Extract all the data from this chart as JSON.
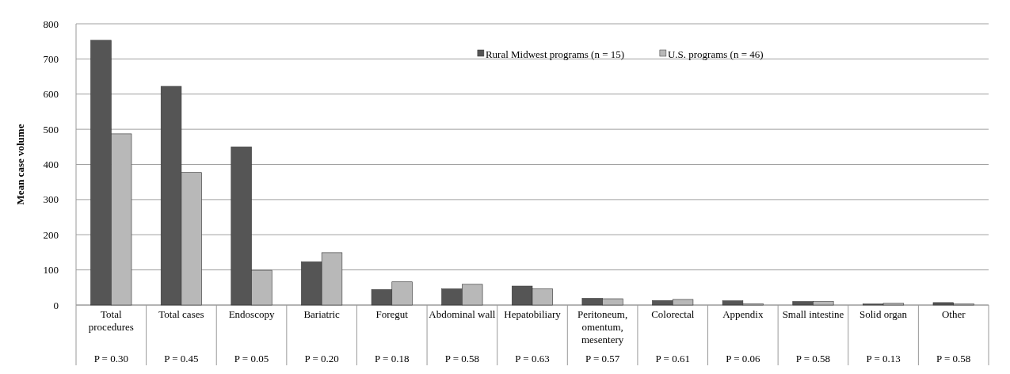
{
  "chart_data": {
    "type": "bar",
    "ylabel": "Mean case volume",
    "categories": [
      "Total procedures",
      "Total cases",
      "Endoscopy",
      "Bariatric",
      "Foregut",
      "Abdominal wall",
      "Hepatobiliary",
      "Peritoneum, omentum, mesentery",
      "Colorectal",
      "Appendix",
      "Small intestine",
      "Solid organ",
      "Other"
    ],
    "series": [
      {
        "name": "Rural Midwest programs (n = 15)",
        "color": "#555555",
        "values": [
          753,
          622,
          450,
          123,
          44,
          46,
          54,
          19,
          13,
          12,
          10,
          3,
          7
        ]
      },
      {
        "name": "U.S. programs (n = 46)",
        "color": "#b8b8b8",
        "values": [
          487,
          377,
          99,
          149,
          66,
          59,
          46,
          18,
          16,
          4,
          10,
          5,
          3
        ]
      }
    ],
    "ylim": [
      0,
      800
    ],
    "yticks": [
      0,
      100,
      200,
      300,
      400,
      500,
      600,
      700,
      800
    ],
    "grid": "y",
    "legend": "top",
    "annotations": [
      "P = 0.30",
      "P = 0.45",
      "P = 0.05",
      "P = 0.20",
      "P = 0.18",
      "P = 0.58",
      "P = 0.63",
      "P = 0.57",
      "P = 0.61",
      "P = 0.06",
      "P = 0.58",
      "P = 0.13",
      "P = 0.58"
    ]
  }
}
